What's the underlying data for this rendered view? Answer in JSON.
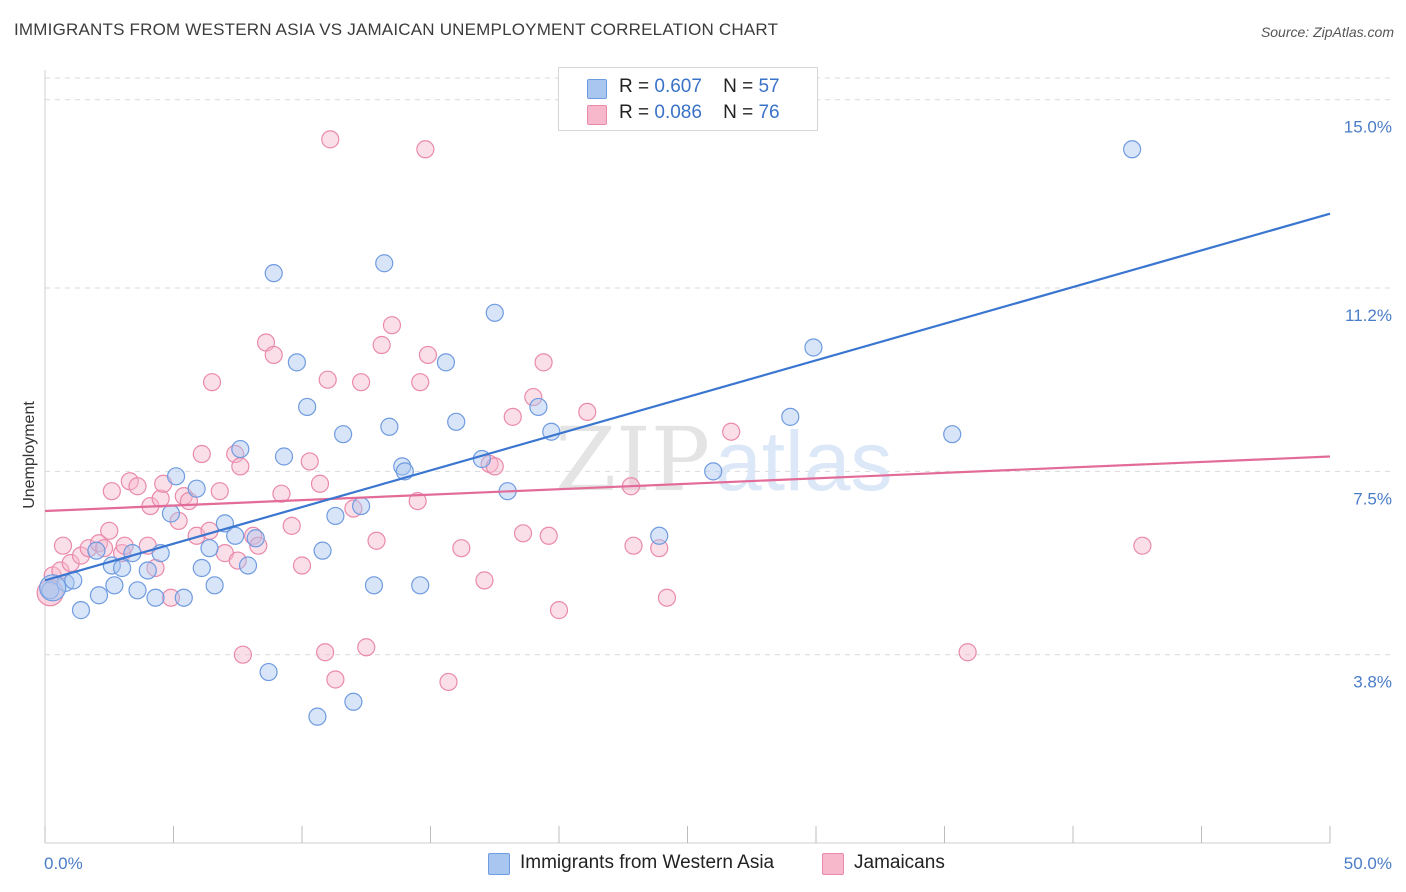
{
  "title": "IMMIGRANTS FROM WESTERN ASIA VS JAMAICAN UNEMPLOYMENT CORRELATION CHART",
  "source": "Source: ZipAtlas.com",
  "watermark": {
    "zip": "ZIP",
    "atlas": "atlas"
  },
  "legend": {
    "r_label": "R =",
    "n_label": "N =",
    "rows": [
      {
        "r": "0.607",
        "n": "57"
      },
      {
        "r": "0.086",
        "n": "76"
      }
    ]
  },
  "colors": {
    "blue_fill": "#a9c6f0",
    "blue_stroke": "#6f9be0",
    "blue_line": "#3a76d0",
    "pink_fill": "#f7b8cb",
    "pink_stroke": "#ea8aaa",
    "pink_line": "#e26b98",
    "grid": "#d9d9d9",
    "tick_text": "#4a7cc7"
  },
  "chart_data": {
    "type": "scatter",
    "xlabel": "",
    "ylabel": "Unemployment",
    "xlim": [
      0,
      50
    ],
    "ylim": [
      0,
      15.6
    ],
    "x_tick_labels": [
      "0.0%",
      "50.0%"
    ],
    "y_ticks": [
      {
        "value": 3.8,
        "label": "3.8%"
      },
      {
        "value": 7.5,
        "label": "7.5%"
      },
      {
        "value": 11.2,
        "label": "11.2%"
      },
      {
        "value": 15.0,
        "label": "15.0%"
      }
    ],
    "grid": true,
    "legend_position": "top-center",
    "series": [
      {
        "name": "Immigrants from Western Asia",
        "color": "blue",
        "trend": [
          [
            0,
            5.3
          ],
          [
            50,
            12.7
          ]
        ],
        "points": [
          [
            0.2,
            5.1
          ],
          [
            0.8,
            5.25
          ],
          [
            1.1,
            5.3
          ],
          [
            1.4,
            4.7
          ],
          [
            2.0,
            5.9
          ],
          [
            2.1,
            5.0
          ],
          [
            2.6,
            5.6
          ],
          [
            2.7,
            5.2
          ],
          [
            3.0,
            5.55
          ],
          [
            3.4,
            5.85
          ],
          [
            3.6,
            5.1
          ],
          [
            4.0,
            5.5
          ],
          [
            4.3,
            4.95
          ],
          [
            4.5,
            5.85
          ],
          [
            4.9,
            6.65
          ],
          [
            5.1,
            7.4
          ],
          [
            5.4,
            4.95
          ],
          [
            5.9,
            7.15
          ],
          [
            6.1,
            5.55
          ],
          [
            6.4,
            5.95
          ],
          [
            6.6,
            5.2
          ],
          [
            7.0,
            6.45
          ],
          [
            7.4,
            6.2
          ],
          [
            7.6,
            7.95
          ],
          [
            7.9,
            5.6
          ],
          [
            8.2,
            6.15
          ],
          [
            8.7,
            3.45
          ],
          [
            8.9,
            11.5
          ],
          [
            9.3,
            7.8
          ],
          [
            9.8,
            9.7
          ],
          [
            10.2,
            8.8
          ],
          [
            10.6,
            2.55
          ],
          [
            10.8,
            5.9
          ],
          [
            11.3,
            6.6
          ],
          [
            11.6,
            8.25
          ],
          [
            12.0,
            2.85
          ],
          [
            12.3,
            6.8
          ],
          [
            12.8,
            5.2
          ],
          [
            13.2,
            11.7
          ],
          [
            13.4,
            8.4
          ],
          [
            13.9,
            7.6
          ],
          [
            14.0,
            7.5
          ],
          [
            14.6,
            5.2
          ],
          [
            15.6,
            9.7
          ],
          [
            16.0,
            8.5
          ],
          [
            17.0,
            7.75
          ],
          [
            17.5,
            10.7
          ],
          [
            18.0,
            7.1
          ],
          [
            19.2,
            8.8
          ],
          [
            19.7,
            8.3
          ],
          [
            23.9,
            6.2
          ],
          [
            26.0,
            7.5
          ],
          [
            29.0,
            8.6
          ],
          [
            29.9,
            10.0
          ],
          [
            35.3,
            8.25
          ],
          [
            42.3,
            14.0
          ],
          [
            0.3,
            5.15
          ]
        ]
      },
      {
        "name": "Jamaicans",
        "color": "pink",
        "trend": [
          [
            0,
            6.7
          ],
          [
            50,
            7.8
          ]
        ],
        "points": [
          [
            0.3,
            5.4
          ],
          [
            0.6,
            5.5
          ],
          [
            0.7,
            6.0
          ],
          [
            1.0,
            5.65
          ],
          [
            1.4,
            5.8
          ],
          [
            1.7,
            5.95
          ],
          [
            2.1,
            6.05
          ],
          [
            2.3,
            5.95
          ],
          [
            2.5,
            6.3
          ],
          [
            2.6,
            7.1
          ],
          [
            3.0,
            5.85
          ],
          [
            3.1,
            6.0
          ],
          [
            3.3,
            7.3
          ],
          [
            3.6,
            7.2
          ],
          [
            4.0,
            6.0
          ],
          [
            4.1,
            6.8
          ],
          [
            4.3,
            5.55
          ],
          [
            4.5,
            6.95
          ],
          [
            4.6,
            7.25
          ],
          [
            4.9,
            4.95
          ],
          [
            5.2,
            6.5
          ],
          [
            5.4,
            7.0
          ],
          [
            5.6,
            6.9
          ],
          [
            5.9,
            6.2
          ],
          [
            6.1,
            7.85
          ],
          [
            6.4,
            6.3
          ],
          [
            6.5,
            9.3
          ],
          [
            6.8,
            7.1
          ],
          [
            7.0,
            5.85
          ],
          [
            7.4,
            7.85
          ],
          [
            7.5,
            5.7
          ],
          [
            7.6,
            7.6
          ],
          [
            7.7,
            3.8
          ],
          [
            8.1,
            6.2
          ],
          [
            8.3,
            6.0
          ],
          [
            8.6,
            10.1
          ],
          [
            8.9,
            9.85
          ],
          [
            9.2,
            7.05
          ],
          [
            9.6,
            6.4
          ],
          [
            10.0,
            5.6
          ],
          [
            10.3,
            7.7
          ],
          [
            10.7,
            7.25
          ],
          [
            10.9,
            3.85
          ],
          [
            11.0,
            9.35
          ],
          [
            11.1,
            14.2
          ],
          [
            11.3,
            3.3
          ],
          [
            12.0,
            6.75
          ],
          [
            12.3,
            9.3
          ],
          [
            12.5,
            3.95
          ],
          [
            12.9,
            6.1
          ],
          [
            13.1,
            10.05
          ],
          [
            13.5,
            10.45
          ],
          [
            14.5,
            6.9
          ],
          [
            14.6,
            9.3
          ],
          [
            14.8,
            14.0
          ],
          [
            14.9,
            9.85
          ],
          [
            15.7,
            3.25
          ],
          [
            16.2,
            5.95
          ],
          [
            17.1,
            5.3
          ],
          [
            17.3,
            7.65
          ],
          [
            17.5,
            7.6
          ],
          [
            18.2,
            8.6
          ],
          [
            18.6,
            6.25
          ],
          [
            19.0,
            9.0
          ],
          [
            19.4,
            9.7
          ],
          [
            19.6,
            6.2
          ],
          [
            20.0,
            4.7
          ],
          [
            21.1,
            8.7
          ],
          [
            22.8,
            7.2
          ],
          [
            22.9,
            6.0
          ],
          [
            23.9,
            5.95
          ],
          [
            24.2,
            4.95
          ],
          [
            26.7,
            8.3
          ],
          [
            35.9,
            3.85
          ],
          [
            42.7,
            6.0
          ],
          [
            0.2,
            5.05
          ]
        ]
      }
    ]
  }
}
